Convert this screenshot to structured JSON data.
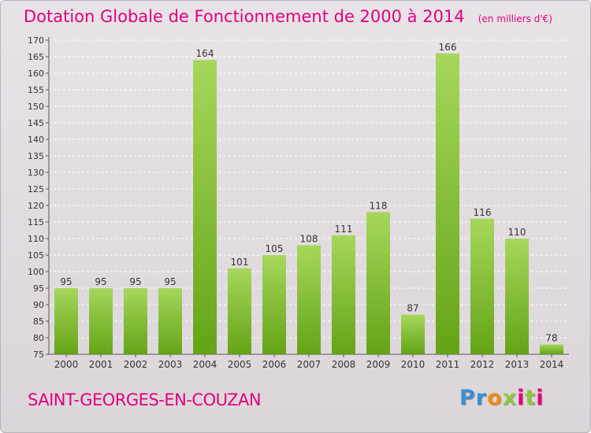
{
  "header": {
    "title": "Dotation Globale de Fonctionnement de 2000 à 2014",
    "subtitle": "(en milliers d'€)"
  },
  "footer": {
    "commune": "SAINT-GEORGES-EN-COUZAN",
    "logo_letters": [
      "P",
      "r",
      "o",
      "x",
      "i",
      "t",
      "i"
    ],
    "logo_colors": [
      "#3a8fd3",
      "#3a8fd3",
      "#f08a1c",
      "#8dc63f",
      "#e2007a",
      "#8dc63f",
      "#e2007a"
    ]
  },
  "colors": {
    "accent": "#e2007a",
    "bar_light": "#a6d75c",
    "bar_dark": "#64a416"
  },
  "chart_data": {
    "type": "bar",
    "categories": [
      "2000",
      "2001",
      "2002",
      "2003",
      "2004",
      "2005",
      "2006",
      "2007",
      "2008",
      "2009",
      "2010",
      "2011",
      "2012",
      "2013",
      "2014"
    ],
    "values": [
      95,
      95,
      95,
      95,
      164,
      101,
      105,
      108,
      111,
      118,
      87,
      166,
      116,
      110,
      78
    ],
    "data_labels": [
      "95",
      "95",
      "95",
      "95",
      "164",
      "101",
      "105",
      "108",
      "111",
      "118",
      "87",
      "166",
      "116",
      "110",
      "78"
    ],
    "yticks": [
      "75",
      "80",
      "85",
      "90",
      "95",
      "100",
      "105",
      "110",
      "115",
      "120",
      "125",
      "130",
      "135",
      "140",
      "145",
      "150",
      "155",
      "160",
      "165",
      "170"
    ],
    "ylim": [
      75,
      170
    ],
    "grid": true,
    "legend": "none"
  }
}
